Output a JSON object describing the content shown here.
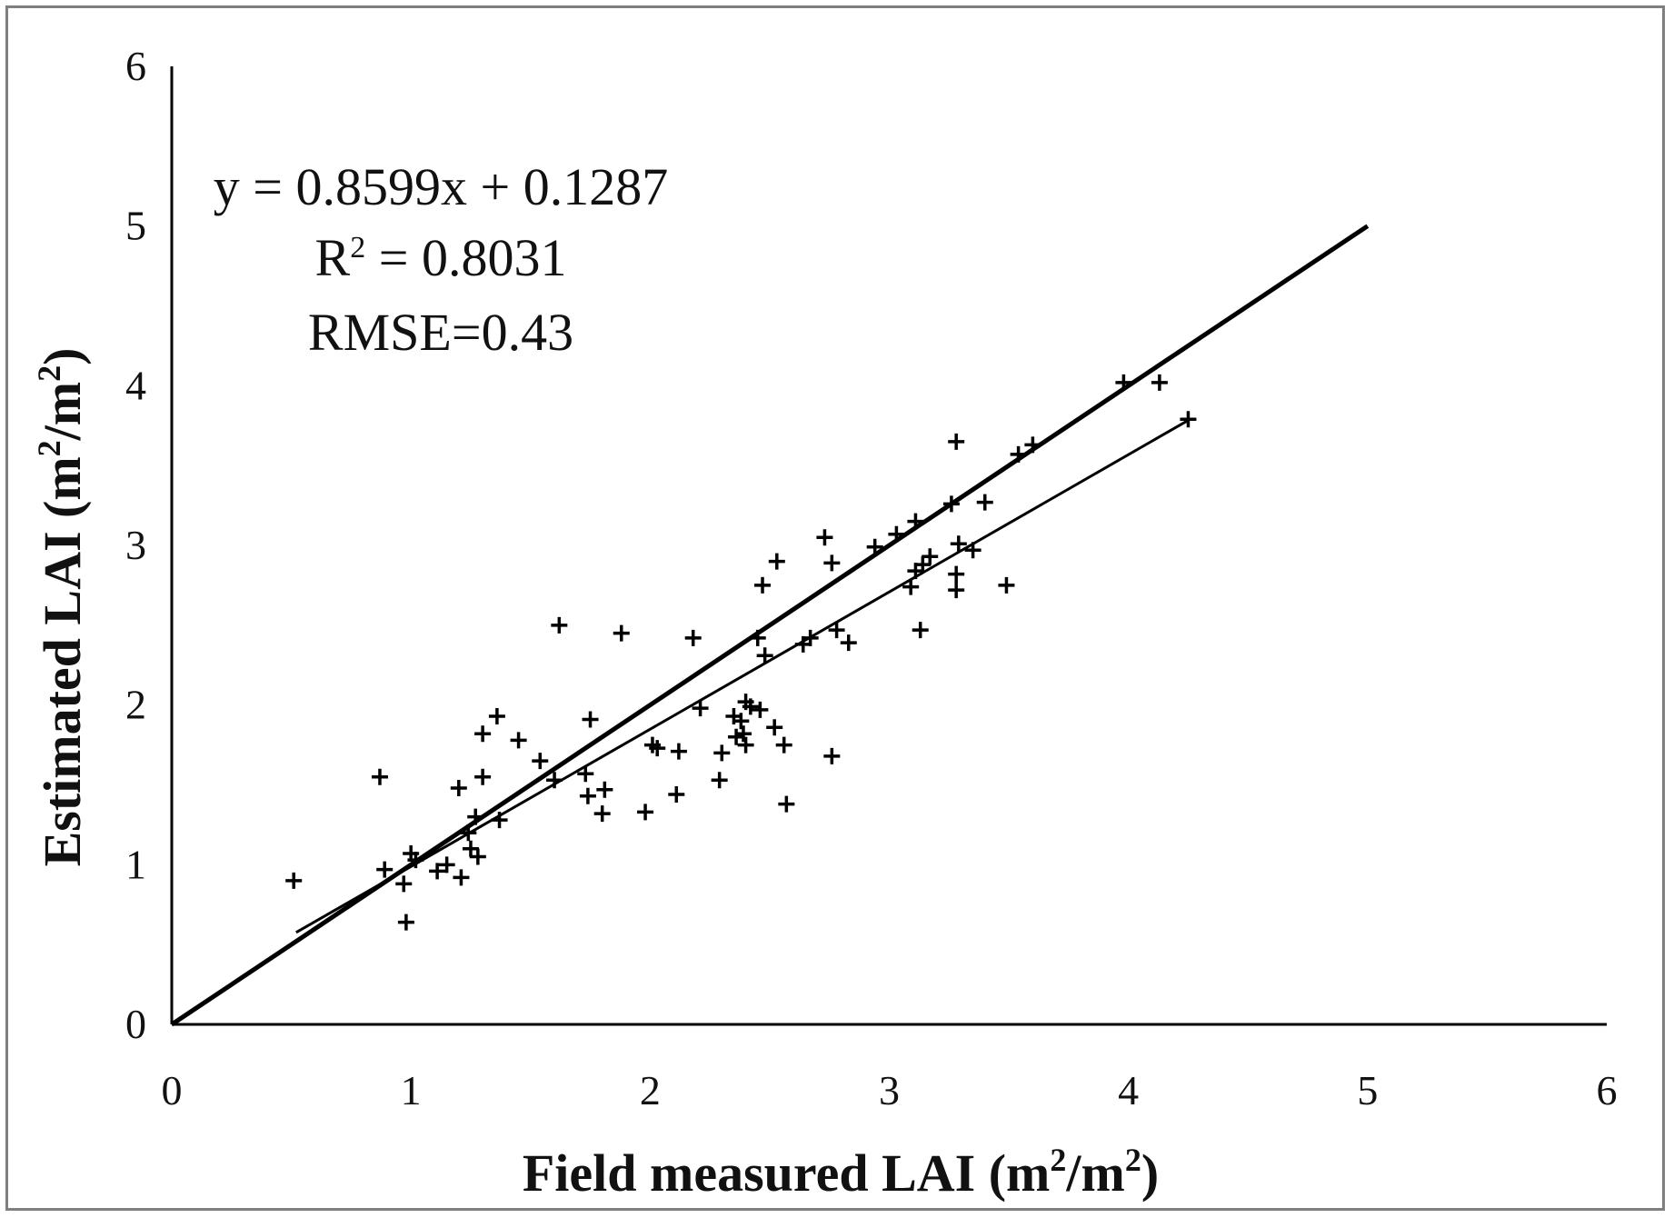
{
  "chart_data": {
    "type": "scatter",
    "title": "",
    "xlabel": "Field measured LAI (m",
    "xlabel_sup1": "2",
    "xlabel_mid": "/m",
    "xlabel_sup2": "2",
    "xlabel_end": ")",
    "ylabel": "Estimated  LAI (m",
    "ylabel_sup1": "2",
    "ylabel_mid": "/m",
    "ylabel_sup2": "2",
    "ylabel_end": ")",
    "xlim": [
      0,
      6
    ],
    "ylim": [
      0,
      6
    ],
    "x_ticks": [
      "0",
      "1",
      "2",
      "3",
      "4",
      "5",
      "6"
    ],
    "y_ticks": [
      "0",
      "1",
      "2",
      "3",
      "4",
      "5",
      "6"
    ],
    "grid": false,
    "marker": "+",
    "annotation": {
      "equation": "y = 0.8599x  + 0.1287",
      "r2_prefix": "R",
      "r2_sup": "2",
      "r2_value": " = 0.8031",
      "rmse": "RMSE=0.43"
    },
    "lines": [
      {
        "name": "1:1 line",
        "x": [
          0,
          5
        ],
        "y": [
          0,
          5
        ]
      },
      {
        "name": "regression",
        "slope": 0.8599,
        "intercept": 0.1287,
        "x": [
          0.52,
          4.25
        ]
      }
    ],
    "points": [
      [
        0.51,
        0.9
      ],
      [
        0.87,
        1.55
      ],
      [
        0.89,
        0.97
      ],
      [
        0.97,
        0.88
      ],
      [
        0.98,
        0.64
      ],
      [
        1.0,
        1.07
      ],
      [
        1.02,
        1.03
      ],
      [
        1.11,
        0.96
      ],
      [
        1.15,
        1.0
      ],
      [
        1.2,
        1.48
      ],
      [
        1.21,
        0.92
      ],
      [
        1.24,
        1.2
      ],
      [
        1.25,
        1.1
      ],
      [
        1.27,
        1.3
      ],
      [
        1.28,
        1.05
      ],
      [
        1.3,
        1.82
      ],
      [
        1.3,
        1.55
      ],
      [
        1.36,
        1.93
      ],
      [
        1.37,
        1.28
      ],
      [
        1.45,
        1.78
      ],
      [
        1.54,
        1.65
      ],
      [
        1.6,
        1.53
      ],
      [
        1.62,
        2.5
      ],
      [
        1.73,
        1.57
      ],
      [
        1.74,
        1.43
      ],
      [
        1.75,
        1.91
      ],
      [
        1.8,
        1.32
      ],
      [
        1.81,
        1.47
      ],
      [
        1.88,
        2.45
      ],
      [
        1.98,
        1.33
      ],
      [
        2.01,
        1.75
      ],
      [
        2.03,
        1.73
      ],
      [
        2.11,
        1.44
      ],
      [
        2.12,
        1.71
      ],
      [
        2.18,
        2.42
      ],
      [
        2.21,
        1.98
      ],
      [
        2.29,
        1.53
      ],
      [
        2.3,
        1.7
      ],
      [
        2.35,
        1.93
      ],
      [
        2.36,
        1.8
      ],
      [
        2.38,
        1.9
      ],
      [
        2.39,
        1.82
      ],
      [
        2.4,
        1.75
      ],
      [
        2.4,
        2.02
      ],
      [
        2.42,
        1.99
      ],
      [
        2.45,
        2.42
      ],
      [
        2.46,
        1.97
      ],
      [
        2.47,
        2.75
      ],
      [
        2.48,
        2.31
      ],
      [
        2.52,
        1.86
      ],
      [
        2.53,
        2.9
      ],
      [
        2.56,
        1.75
      ],
      [
        2.57,
        1.38
      ],
      [
        2.64,
        2.38
      ],
      [
        2.67,
        2.42
      ],
      [
        2.73,
        3.05
      ],
      [
        2.76,
        1.68
      ],
      [
        2.76,
        2.89
      ],
      [
        2.78,
        2.47
      ],
      [
        2.83,
        2.39
      ],
      [
        2.94,
        2.99
      ],
      [
        3.03,
        3.07
      ],
      [
        3.09,
        2.74
      ],
      [
        3.11,
        2.84
      ],
      [
        3.11,
        3.15
      ],
      [
        3.13,
        2.47
      ],
      [
        3.14,
        2.88
      ],
      [
        3.17,
        2.93
      ],
      [
        3.26,
        3.26
      ],
      [
        3.28,
        3.65
      ],
      [
        3.28,
        2.72
      ],
      [
        3.28,
        2.82
      ],
      [
        3.29,
        3.01
      ],
      [
        3.35,
        2.97
      ],
      [
        3.4,
        3.27
      ],
      [
        3.49,
        2.75
      ],
      [
        3.54,
        3.57
      ],
      [
        3.6,
        3.63
      ],
      [
        3.98,
        4.02
      ],
      [
        4.13,
        4.02
      ],
      [
        4.25,
        3.79
      ]
    ]
  }
}
